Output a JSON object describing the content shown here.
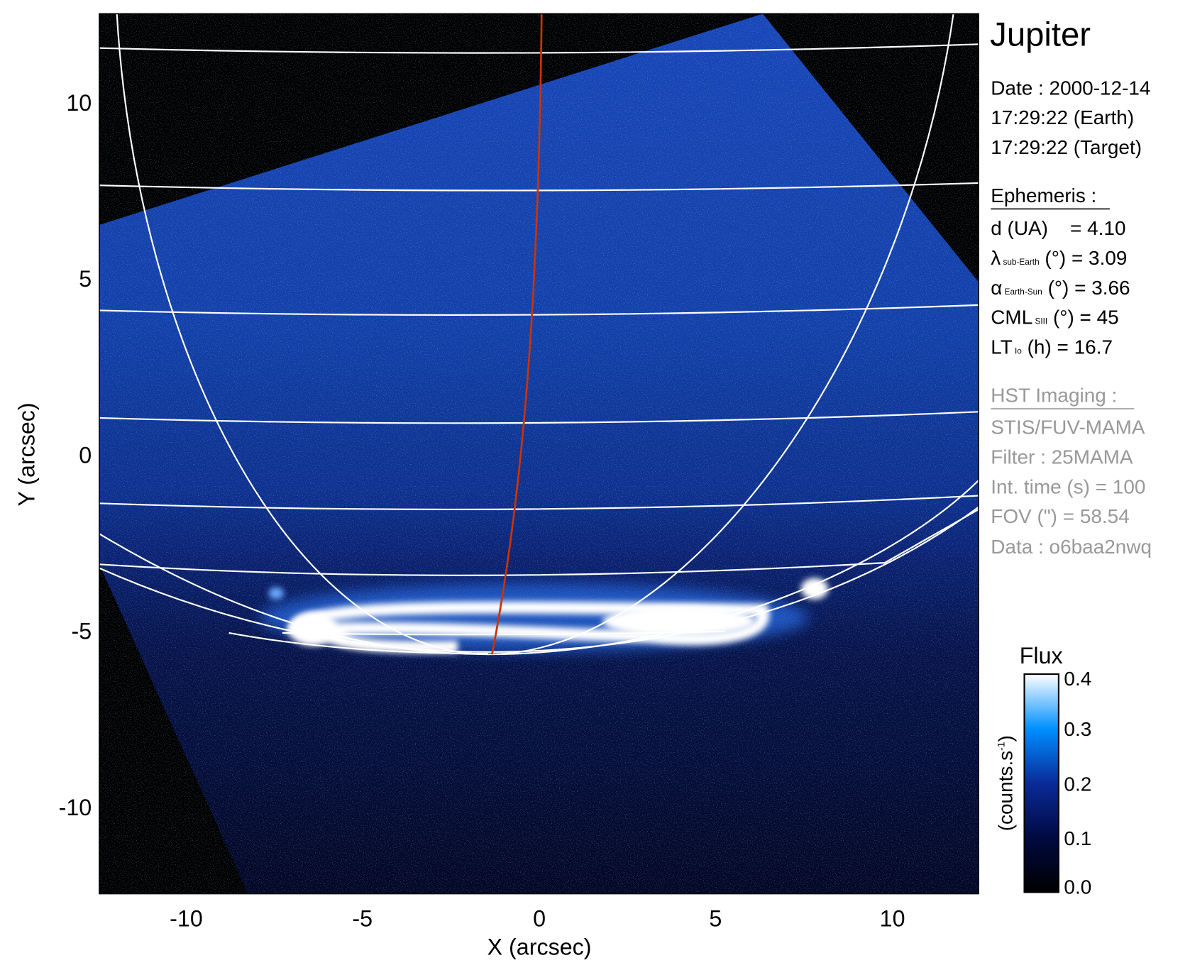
{
  "chart_data": {
    "type": "image",
    "xlabel": "X (arcsec)",
    "ylabel": "Y (arcsec)",
    "xlim": [
      -12.45,
      12.45
    ],
    "ylim": [
      -12.45,
      12.45
    ],
    "xticks": [
      "-10",
      "-5",
      "0",
      "5",
      "10"
    ],
    "yticks": [
      "10",
      "5",
      "0",
      "-5",
      "-10"
    ],
    "grid_color": "#ffffff",
    "meridian_color": "#cc3300",
    "colorbar": {
      "title": "Flux",
      "label": "(counts.s",
      "label_sup": "-1",
      "label_end": ")",
      "range": [
        0.0,
        0.4
      ],
      "ticks": [
        "0.4",
        "0.3",
        "0.2",
        "0.1",
        "0.0"
      ],
      "colors": [
        "#000000",
        "#000a40",
        "#0a2a9a",
        "#0090ff",
        "#ffffff"
      ]
    }
  },
  "panel": {
    "title": "Jupiter",
    "date": "Date : 2000-12-14",
    "time_earth": "17:29:22 (Earth)",
    "time_target": "17:29:22 (Target)",
    "ephemeris_title": "Ephemeris :",
    "ephemeris": [
      {
        "sym": "d (UA)",
        "sub": "",
        "rest": "    = 4.10"
      },
      {
        "sym": "λ",
        "sub": "sub-Earth",
        "rest": " (°) = 3.09"
      },
      {
        "sym": "α",
        "sub": "Earth-Sun",
        "rest": " (°) = 3.66"
      },
      {
        "sym": "CML",
        "sub": "SIII",
        "rest": " (°) = 45"
      },
      {
        "sym": "LT",
        "sub": "Io",
        "rest": " (h) = 16.7"
      }
    ],
    "imaging_title": "HST Imaging :",
    "imaging": [
      "STIS/FUV-MAMA",
      "Filter : 25MAMA",
      "Int. time (s) = 100",
      "FOV (\") = 58.54",
      "Data : o6baa2nwq"
    ]
  }
}
